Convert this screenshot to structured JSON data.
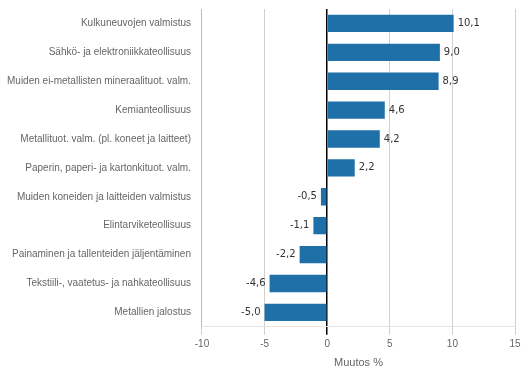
{
  "chart_data": {
    "type": "bar",
    "orientation": "horizontal",
    "categories": [
      "Metallien jalostus",
      "Tekstiili-, vaatetus- ja nahkateollisuus",
      "Painaminen ja tallenteiden jäljentäminen",
      "Elintarviketeollisuus",
      "Muiden koneiden ja laitteiden valmistus",
      "Paperin, paperi- ja kartonkituot. valm.",
      "Metallituot. valm. (pl. koneet ja laitteet)",
      "Kemianteollisuus",
      "Muiden ei-metallisten mineraalituot. valm.",
      "Sähkö- ja elektroniikkateollisuus",
      "Kulkuneuvojen valmistus"
    ],
    "values": [
      -5.0,
      -4.6,
      -2.2,
      -1.1,
      -0.5,
      2.2,
      4.2,
      4.6,
      8.9,
      9.0,
      10.1
    ],
    "value_labels": [
      "-5,0",
      "-4,6",
      "-2,2",
      "-1,1",
      "-0,5",
      "2,2",
      "4,2",
      "4,6",
      "8,9",
      "9,0",
      "10,1"
    ],
    "data_labels": true,
    "color": "#1f6fa8",
    "xlabel": "Muutos %",
    "xlim": [
      -10,
      15
    ],
    "xticks": [
      -10,
      -5,
      0,
      5,
      10,
      15
    ],
    "grid": true
  }
}
